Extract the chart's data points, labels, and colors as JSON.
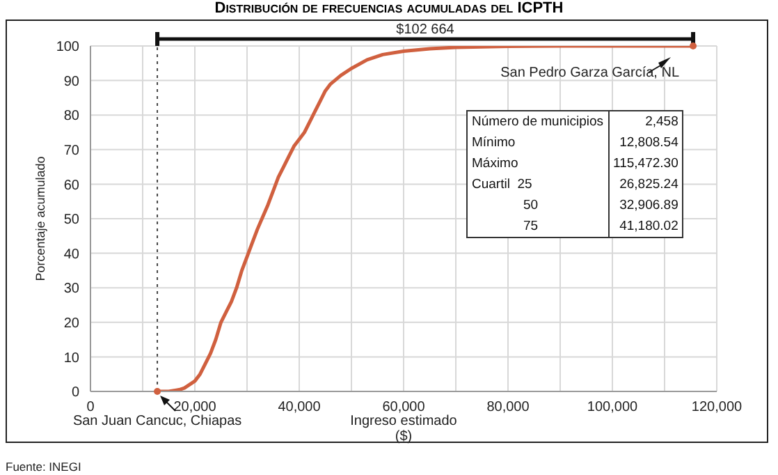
{
  "chart_data": {
    "type": "line",
    "title": "Distribución de frecuencias acumuladas del ICPTH",
    "xlabel": "Ingreso estimado ($)",
    "ylabel": "Porcentaje acumulado",
    "x": [
      12808.54,
      15000,
      17000,
      18000,
      20000,
      21000,
      22000,
      23000,
      24000,
      25000,
      26000,
      27000,
      28000,
      29000,
      30000,
      31000,
      32000,
      33000,
      34000,
      35000,
      36000,
      37000,
      38000,
      39000,
      40000,
      41000,
      42000,
      43000,
      44000,
      45000,
      46000,
      48000,
      50000,
      53000,
      56000,
      60000,
      65000,
      70000,
      80000,
      90000,
      115472.3
    ],
    "series": [
      {
        "color": "#d0603f",
        "values": [
          0,
          0,
          0.5,
          1,
          3,
          5,
          8,
          11,
          15,
          20,
          23,
          26,
          30,
          35,
          39,
          43,
          47,
          50.5,
          54,
          58,
          62,
          65,
          68,
          71,
          73,
          75,
          78,
          81,
          84,
          87,
          89,
          91.5,
          93.5,
          96,
          97.5,
          98.5,
          99.2,
          99.6,
          99.9,
          100,
          100
        ]
      }
    ],
    "xlim": [
      0,
      120000
    ],
    "xticks": [
      0,
      {
        "value": 10000,
        "label": null
      },
      {
        "value": 20000,
        "label": "20,000"
      },
      {
        "value": 30000,
        "label": null
      },
      {
        "value": 40000,
        "label": "40,000"
      },
      {
        "value": 50000,
        "label": null
      },
      {
        "value": 60000,
        "label": "60,000"
      },
      {
        "value": 70000,
        "label": null
      },
      {
        "value": 80000,
        "label": "80,000"
      },
      {
        "value": 90000,
        "label": null
      },
      {
        "value": 100000,
        "label": "100,000"
      },
      {
        "value": 110000,
        "label": null
      },
      {
        "value": 120000,
        "label": "120,000"
      }
    ],
    "ylim": [
      0,
      100
    ],
    "yticks": [
      0,
      10,
      20,
      30,
      40,
      50,
      60,
      70,
      80,
      90,
      100
    ],
    "grid": true,
    "ref_lines": [
      {
        "axis": "x",
        "value": 12808.54,
        "line_style": "dotted",
        "color": "#444444"
      }
    ],
    "annotations": [
      "$102 664",
      {
        "text": "San Pedro Garza García, NL",
        "x": 115472.3,
        "y": 100
      },
      {
        "text": "San Juan Cancuc, Chiapas",
        "x": 12808.54,
        "y": 0
      },
      "Número de municipios",
      "2,458",
      "Mínimo",
      "12,808.54",
      "Máximo",
      "115,472.30",
      "Cuartil  25",
      "26,825.24",
      "50",
      "32,906.89",
      "75",
      "41,180.02",
      "Fuente: INEGI"
    ]
  }
}
